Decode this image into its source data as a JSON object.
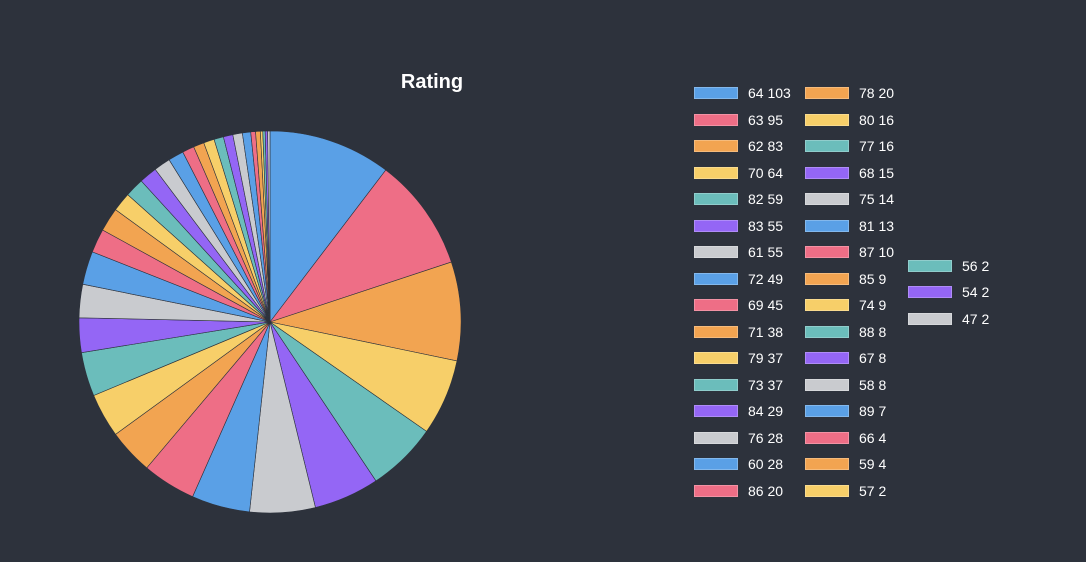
{
  "chart_data": {
    "type": "pie",
    "title": "Rating",
    "categories": [
      "64",
      "63",
      "62",
      "70",
      "82",
      "83",
      "61",
      "72",
      "69",
      "71",
      "79",
      "73",
      "84",
      "76",
      "60",
      "86",
      "78",
      "80",
      "77",
      "68",
      "75",
      "81",
      "87",
      "85",
      "74",
      "88",
      "67",
      "58",
      "89",
      "66",
      "59",
      "57",
      "56",
      "54",
      "47"
    ],
    "values": [
      103,
      95,
      83,
      64,
      59,
      55,
      55,
      49,
      45,
      38,
      37,
      37,
      29,
      28,
      28,
      20,
      20,
      16,
      16,
      15,
      14,
      13,
      10,
      9,
      9,
      8,
      8,
      8,
      7,
      4,
      4,
      2,
      2,
      2,
      2
    ],
    "labels": [
      "64 103",
      "63 95",
      "62 83",
      "70 64",
      "82 59",
      "83 55",
      "61 55",
      "72 49",
      "69 45",
      "71 38",
      "79 37",
      "73 37",
      "84 29",
      "76 28",
      "60 28",
      "86 20",
      "78 20",
      "80 16",
      "77 16",
      "68 15",
      "75 14",
      "81 13",
      "87 10",
      "85 9",
      "74 9",
      "88 8",
      "67 8",
      "58 8",
      "89 7",
      "66 4",
      "59 4",
      "57 2",
      "56 2",
      "54 2",
      "47 2"
    ],
    "colors": [
      "#5aa0e6",
      "#ee6e86",
      "#f2a451",
      "#f7cf69",
      "#6bbdbb",
      "#9466f5",
      "#c9cbcf"
    ],
    "legend_position": "right"
  }
}
